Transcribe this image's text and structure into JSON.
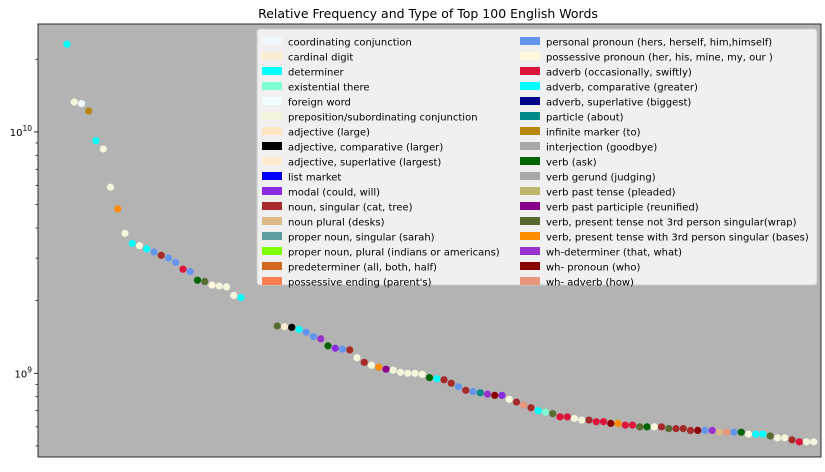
{
  "chart_data": {
    "type": "scatter",
    "title": "Relative Frequency and Type of Top 100 English Words",
    "xlabel": "",
    "ylabel": "",
    "yscale": "log",
    "xlim": [
      -4,
      104
    ],
    "ylim": [
      450000000,
      28000000000
    ],
    "y_major_ticks": [
      {
        "value": 1000000000,
        "base": "10",
        "exp": "9"
      },
      {
        "value": 10000000000,
        "base": "10",
        "exp": "10"
      }
    ],
    "y_minor_ticks": [
      500000000,
      600000000,
      700000000,
      800000000,
      900000000,
      2000000000,
      3000000000,
      4000000000,
      5000000000,
      6000000000,
      7000000000,
      8000000000,
      9000000000,
      20000000000
    ],
    "background": "#b3b3b3",
    "legend_position": "upper-right",
    "legend": [
      {
        "label": "coordinating conjunction",
        "color": "#f0f8ff"
      },
      {
        "label": "cardinal digit",
        "color": "#faebd7"
      },
      {
        "label": "determiner",
        "color": "#00ffff"
      },
      {
        "label": "existential there",
        "color": "#7fffd4"
      },
      {
        "label": "foreign word",
        "color": "#f0ffff"
      },
      {
        "label": "preposition/subordinating conjunction",
        "color": "#f5f5dc"
      },
      {
        "label": "adjective (large)",
        "color": "#ffe4c4"
      },
      {
        "label": "adjective, comparative (larger)",
        "color": "#000000"
      },
      {
        "label": "adjective, superlative (largest)",
        "color": "#ffebcd"
      },
      {
        "label": "list market",
        "color": "#0000ff"
      },
      {
        "label": "modal (could, will)",
        "color": "#8a2be2"
      },
      {
        "label": "noun, singular (cat, tree)",
        "color": "#a52a2a"
      },
      {
        "label": "noun plural (desks)",
        "color": "#deb887"
      },
      {
        "label": "proper noun, singular (sarah)",
        "color": "#5f9ea0"
      },
      {
        "label": "proper noun, plural (indians or americans)",
        "color": "#7fff00"
      },
      {
        "label": "predeterminer (all, both, half)",
        "color": "#d2691e"
      },
      {
        "label": "possessive ending (parent's)",
        "color": "#ff7f50"
      },
      {
        "label": "personal pronoun (hers, herself, him,himself)",
        "color": "#6495ed"
      },
      {
        "label": "possessive pronoun (her, his, mine, my, our )",
        "color": "#fff8dc"
      },
      {
        "label": "adverb (occasionally, swiftly)",
        "color": "#dc143c"
      },
      {
        "label": "adverb, comparative (greater)",
        "color": "#00ffff"
      },
      {
        "label": "adverb, superlative (biggest)",
        "color": "#00008b"
      },
      {
        "label": "particle (about)",
        "color": "#008b8b"
      },
      {
        "label": "infinite marker (to)",
        "color": "#b8860b"
      },
      {
        "label": "interjection (goodbye)",
        "color": "#a9a9a9"
      },
      {
        "label": "verb (ask)",
        "color": "#006400"
      },
      {
        "label": "verb gerund (judging)",
        "color": "#a9a9a9"
      },
      {
        "label": "verb past tense (pleaded)",
        "color": "#bdb76b"
      },
      {
        "label": "verb past participle (reunified)",
        "color": "#8b008b"
      },
      {
        "label": "verb, present tense not 3rd person singular(wrap)",
        "color": "#556b2f"
      },
      {
        "label": "verb, present tense with 3rd person singular (bases)",
        "color": "#ff8c00"
      },
      {
        "label": "wh-determiner (that, what)",
        "color": "#9932cc"
      },
      {
        "label": "wh- pronoun (who)",
        "color": "#8b0000"
      },
      {
        "label": "wh- adverb (how)",
        "color": "#e9967a"
      }
    ],
    "points": [
      {
        "x": 0,
        "y": 23100000000,
        "color": "#00ffff"
      },
      {
        "x": 1,
        "y": 13300000000,
        "color": "#f5f5dc"
      },
      {
        "x": 2,
        "y": 13100000000,
        "color": "#f0f8ff"
      },
      {
        "x": 3,
        "y": 12200000000,
        "color": "#b8860b"
      },
      {
        "x": 4,
        "y": 9200000000,
        "color": "#00ffff"
      },
      {
        "x": 5,
        "y": 8500000000,
        "color": "#f5f5dc"
      },
      {
        "x": 6,
        "y": 5900000000,
        "color": "#f5f5dc"
      },
      {
        "x": 7,
        "y": 4800000000,
        "color": "#ff8c00"
      },
      {
        "x": 8,
        "y": 3800000000,
        "color": "#f5f5dc"
      },
      {
        "x": 9,
        "y": 3450000000,
        "color": "#00ffff"
      },
      {
        "x": 10,
        "y": 3380000000,
        "color": "#f5f5dc"
      },
      {
        "x": 11,
        "y": 3280000000,
        "color": "#00ffff"
      },
      {
        "x": 12,
        "y": 3180000000,
        "color": "#6495ed"
      },
      {
        "x": 13,
        "y": 3080000000,
        "color": "#a52a2a"
      },
      {
        "x": 14,
        "y": 3000000000,
        "color": "#6495ed"
      },
      {
        "x": 15,
        "y": 2880000000,
        "color": "#6495ed"
      },
      {
        "x": 16,
        "y": 2700000000,
        "color": "#dc143c"
      },
      {
        "x": 17,
        "y": 2640000000,
        "color": "#6495ed"
      },
      {
        "x": 18,
        "y": 2430000000,
        "color": "#006400"
      },
      {
        "x": 19,
        "y": 2400000000,
        "color": "#556b2f"
      },
      {
        "x": 20,
        "y": 2320000000,
        "color": "#fff8dc"
      },
      {
        "x": 21,
        "y": 2300000000,
        "color": "#f5f5dc"
      },
      {
        "x": 22,
        "y": 2280000000,
        "color": "#f5f5dc"
      },
      {
        "x": 23,
        "y": 2100000000,
        "color": "#f5f5dc"
      },
      {
        "x": 24,
        "y": 2060000000,
        "color": "#00ffff"
      },
      {
        "x": 29,
        "y": 1570000000,
        "color": "#556b2f"
      },
      {
        "x": 30,
        "y": 1560000000,
        "color": "#ffebcd"
      },
      {
        "x": 31,
        "y": 1550000000,
        "color": "#000000"
      },
      {
        "x": 32,
        "y": 1520000000,
        "color": "#00ffff"
      },
      {
        "x": 33,
        "y": 1480000000,
        "color": "#6495ed"
      },
      {
        "x": 34,
        "y": 1420000000,
        "color": "#6495ed"
      },
      {
        "x": 35,
        "y": 1390000000,
        "color": "#9932cc"
      },
      {
        "x": 36,
        "y": 1300000000,
        "color": "#006400"
      },
      {
        "x": 37,
        "y": 1270000000,
        "color": "#8a2be2"
      },
      {
        "x": 38,
        "y": 1260000000,
        "color": "#6495ed"
      },
      {
        "x": 39,
        "y": 1250000000,
        "color": "#a52a2a"
      },
      {
        "x": 40,
        "y": 1160000000,
        "color": "#f5f5dc"
      },
      {
        "x": 41,
        "y": 1110000000,
        "color": "#a52a2a"
      },
      {
        "x": 42,
        "y": 1080000000,
        "color": "#f5f5dc"
      },
      {
        "x": 43,
        "y": 1060000000,
        "color": "#ff8c00"
      },
      {
        "x": 44,
        "y": 1040000000,
        "color": "#8b008b"
      },
      {
        "x": 45,
        "y": 1030000000,
        "color": "#f5f5dc"
      },
      {
        "x": 46,
        "y": 1010000000,
        "color": "#f5f5dc"
      },
      {
        "x": 47,
        "y": 1000000000,
        "color": "#f5f5dc"
      },
      {
        "x": 48,
        "y": 1000000000,
        "color": "#f5f5dc"
      },
      {
        "x": 49,
        "y": 990000000,
        "color": "#f5f5dc"
      },
      {
        "x": 50,
        "y": 960000000,
        "color": "#006400"
      },
      {
        "x": 51,
        "y": 950000000,
        "color": "#00ffff"
      },
      {
        "x": 52,
        "y": 940000000,
        "color": "#a52a2a"
      },
      {
        "x": 53,
        "y": 910000000,
        "color": "#a52a2a"
      },
      {
        "x": 54,
        "y": 880000000,
        "color": "#6495ed"
      },
      {
        "x": 55,
        "y": 850000000,
        "color": "#a52a2a"
      },
      {
        "x": 56,
        "y": 840000000,
        "color": "#6495ed"
      },
      {
        "x": 57,
        "y": 830000000,
        "color": "#008b8b"
      },
      {
        "x": 58,
        "y": 820000000,
        "color": "#9932cc"
      },
      {
        "x": 59,
        "y": 810000000,
        "color": "#8b0000"
      },
      {
        "x": 60,
        "y": 810000000,
        "color": "#8a2be2"
      },
      {
        "x": 61,
        "y": 780000000,
        "color": "#f5f5dc"
      },
      {
        "x": 62,
        "y": 760000000,
        "color": "#a52a2a"
      },
      {
        "x": 63,
        "y": 740000000,
        "color": "#e9967a"
      },
      {
        "x": 64,
        "y": 720000000,
        "color": "#a52a2a"
      },
      {
        "x": 65,
        "y": 700000000,
        "color": "#00ffff"
      },
      {
        "x": 66,
        "y": 690000000,
        "color": "#7fffd4"
      },
      {
        "x": 67,
        "y": 680000000,
        "color": "#556b2f"
      },
      {
        "x": 68,
        "y": 660000000,
        "color": "#dc143c"
      },
      {
        "x": 69,
        "y": 660000000,
        "color": "#dc143c"
      },
      {
        "x": 70,
        "y": 650000000,
        "color": "#f5f5dc"
      },
      {
        "x": 71,
        "y": 640000000,
        "color": "#f5f5dc"
      },
      {
        "x": 72,
        "y": 640000000,
        "color": "#a52a2a"
      },
      {
        "x": 73,
        "y": 630000000,
        "color": "#dc143c"
      },
      {
        "x": 74,
        "y": 630000000,
        "color": "#dc143c"
      },
      {
        "x": 75,
        "y": 620000000,
        "color": "#8b0000"
      },
      {
        "x": 76,
        "y": 620000000,
        "color": "#ff8c00"
      },
      {
        "x": 77,
        "y": 610000000,
        "color": "#dc143c"
      },
      {
        "x": 78,
        "y": 610000000,
        "color": "#dc143c"
      },
      {
        "x": 79,
        "y": 600000000,
        "color": "#556b2f"
      },
      {
        "x": 80,
        "y": 600000000,
        "color": "#006400"
      },
      {
        "x": 81,
        "y": 600000000,
        "color": "#fff8dc"
      },
      {
        "x": 82,
        "y": 600000000,
        "color": "#a52a2a"
      },
      {
        "x": 83,
        "y": 590000000,
        "color": "#556b2f"
      },
      {
        "x": 84,
        "y": 590000000,
        "color": "#a52a2a"
      },
      {
        "x": 85,
        "y": 590000000,
        "color": "#a52a2a"
      },
      {
        "x": 86,
        "y": 580000000,
        "color": "#a52a2a"
      },
      {
        "x": 87,
        "y": 580000000,
        "color": "#8b0000"
      },
      {
        "x": 88,
        "y": 580000000,
        "color": "#6495ed"
      },
      {
        "x": 89,
        "y": 580000000,
        "color": "#9932cc"
      },
      {
        "x": 90,
        "y": 570000000,
        "color": "#deb887"
      },
      {
        "x": 91,
        "y": 570000000,
        "color": "#e9967a"
      },
      {
        "x": 92,
        "y": 570000000,
        "color": "#6495ed"
      },
      {
        "x": 93,
        "y": 570000000,
        "color": "#006400"
      },
      {
        "x": 94,
        "y": 560000000,
        "color": "#f5f5dc"
      },
      {
        "x": 95,
        "y": 560000000,
        "color": "#00ffff"
      },
      {
        "x": 96,
        "y": 560000000,
        "color": "#00ffff"
      },
      {
        "x": 97,
        "y": 550000000,
        "color": "#556b2f"
      },
      {
        "x": 98,
        "y": 540000000,
        "color": "#f5f5dc"
      },
      {
        "x": 99,
        "y": 540000000,
        "color": "#f5f5dc"
      },
      {
        "x": 100,
        "y": 530000000,
        "color": "#a52a2a"
      },
      {
        "x": 101,
        "y": 520000000,
        "color": "#dc143c"
      },
      {
        "x": 102,
        "y": 520000000,
        "color": "#f5f5dc"
      },
      {
        "x": 103,
        "y": 520000000,
        "color": "#f5f5dc"
      }
    ]
  }
}
